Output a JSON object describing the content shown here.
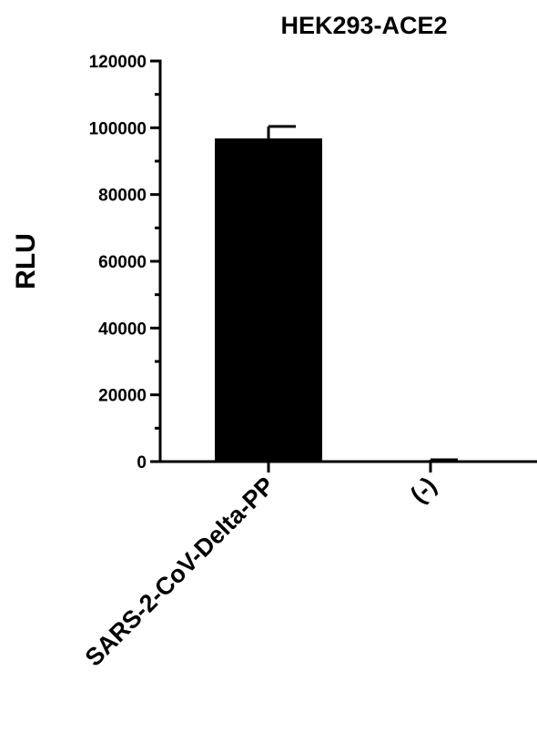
{
  "chart_data": {
    "type": "bar",
    "title": "HEK293-ACE2",
    "xlabel": "",
    "ylabel": "RLU",
    "ylim": [
      0,
      120000
    ],
    "yticks": [
      0,
      20000,
      40000,
      60000,
      80000,
      100000,
      120000
    ],
    "categories": [
      "SARS-2-CoV-Delta-PP",
      "(-)"
    ],
    "values": [
      96800,
      350
    ],
    "errors": [
      3600,
      200
    ],
    "bar_color": "#000000",
    "grid": false,
    "legend": "none"
  }
}
